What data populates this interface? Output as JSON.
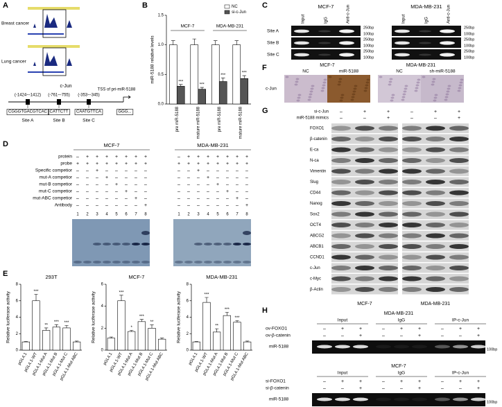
{
  "panel_labels": [
    "A",
    "B",
    "C",
    "D",
    "E",
    "F",
    "G",
    "H"
  ],
  "panels": {
    "A": {
      "tracks": [
        "Breast cancer",
        "Lung cancer"
      ],
      "gene": "c-Jun",
      "sites": [
        {
          "position": "(-1424~-1412)",
          "sequence": "CGGGTGACGTCAC",
          "name": "Site A"
        },
        {
          "position": "(-761~-755)",
          "sequence": "CATTCTT",
          "name": "Site B"
        },
        {
          "position": "(-353~-345)",
          "sequence": "CAATGTTCA",
          "name": "Site C"
        }
      ],
      "tss": "TSS of pri-miR-5188",
      "tss_sequence": "GGG..."
    },
    "C": {
      "rows": [
        "Site A",
        "Site B",
        "Site C"
      ],
      "gels": [
        {
          "cell": "MCF-7",
          "columns": [
            "Input",
            "IgG",
            "Anti-c-Jun"
          ],
          "markers": [
            "250bp",
            "100bp",
            "250bp",
            "100bp",
            "250bp",
            "100bp"
          ]
        },
        {
          "cell": "MDA-MB-231",
          "columns": [
            "Input",
            "IgG",
            "Anti-c-Jun"
          ],
          "markers": [
            "250bp",
            "100bp",
            "250bp",
            "100bp",
            "250bp",
            "100bp"
          ]
        }
      ]
    },
    "D": {
      "row_labels": [
        "protein",
        "probe",
        "Specific competior",
        "mut-A competior",
        "mut-B competior",
        "mut-C competior",
        "mut-ABC competior",
        "Antibody"
      ],
      "blots": [
        {
          "cell": "MCF-7",
          "lanes": [
            1,
            2,
            3,
            4,
            5,
            6,
            7,
            8
          ],
          "signs": [
            [
              "–",
              "+",
              "+",
              "+",
              "+",
              "+",
              "+",
              "+"
            ],
            [
              "+",
              "+",
              "+",
              "+",
              "+",
              "+",
              "+",
              "+"
            ],
            [
              "–",
              "–",
              "+",
              "–",
              "–",
              "–",
              "–",
              "–"
            ],
            [
              "–",
              "–",
              "–",
              "+",
              "–",
              "–",
              "–",
              "–"
            ],
            [
              "–",
              "–",
              "–",
              "–",
              "+",
              "–",
              "–",
              "–"
            ],
            [
              "–",
              "–",
              "–",
              "–",
              "–",
              "+",
              "–",
              "–"
            ],
            [
              "–",
              "–",
              "–",
              "–",
              "–",
              "–",
              "+",
              "–"
            ],
            [
              "–",
              "–",
              "–",
              "–",
              "–",
              "–",
              "–",
              "+"
            ]
          ]
        },
        {
          "cell": "MDA-MB-231",
          "lanes": [
            1,
            2,
            3,
            4,
            5,
            6,
            7,
            8
          ],
          "signs": [
            [
              "–",
              "+",
              "+",
              "+",
              "+",
              "+",
              "+",
              "+"
            ],
            [
              "+",
              "+",
              "+",
              "+",
              "+",
              "+",
              "+",
              "+"
            ],
            [
              "–",
              "–",
              "+",
              "–",
              "–",
              "–",
              "–",
              "–"
            ],
            [
              "–",
              "–",
              "–",
              "+",
              "–",
              "–",
              "–",
              "–"
            ],
            [
              "–",
              "–",
              "–",
              "–",
              "+",
              "–",
              "–",
              "–"
            ],
            [
              "–",
              "–",
              "–",
              "–",
              "–",
              "+",
              "–",
              "–"
            ],
            [
              "–",
              "–",
              "–",
              "–",
              "–",
              "–",
              "+",
              "–"
            ],
            [
              "–",
              "–",
              "–",
              "–",
              "–",
              "–",
              "–",
              "+"
            ]
          ]
        }
      ]
    },
    "F": {
      "stain": "c-Jun",
      "cells": [
        {
          "cell": "MCF-7",
          "conditions": [
            "NC",
            "miR-5188"
          ]
        },
        {
          "cell": "MDA-MB-231",
          "conditions": [
            "NC",
            "sh-miR-5188"
          ]
        }
      ]
    },
    "G": {
      "treatments": [
        "si-c-Jun",
        "miR-5188 mimics"
      ],
      "proteins": [
        "FOXO1",
        "β-catenin",
        "E-ca",
        "N-ca",
        "Vimentin",
        "Slug",
        "CD44",
        "Nanog",
        "Sox2",
        "OCT4",
        "ABCG2",
        "ABCB1",
        "CCND1",
        "c-Jun",
        "c-Myc",
        "β-Actin"
      ],
      "blots": [
        {
          "cell": "MCF-7",
          "signs": [
            [
              "–",
              "+",
              "+"
            ],
            [
              "–",
              "–",
              "+"
            ]
          ]
        },
        {
          "cell": "MDA-MB-231",
          "signs": [
            [
              "–",
              "+",
              "+"
            ],
            [
              "–",
              "–",
              "+"
            ]
          ]
        }
      ]
    },
    "H": {
      "sections": [
        {
          "cell": "MDA-MB-231",
          "groups": [
            "Input",
            "IgG",
            "IP-c-Jun"
          ],
          "treatments": [
            {
              "name": "ov-FOXO1",
              "signs": [
                "–",
                "+",
                "+",
                "–",
                "+",
                "+",
                "–",
                "+",
                "+"
              ]
            },
            {
              "name": "ov-β-catenin",
              "signs": [
                "–",
                "–",
                "+",
                "–",
                "–",
                "+",
                "–",
                "–",
                "+"
              ]
            }
          ],
          "band": "miR-5188",
          "marker": "100bp"
        },
        {
          "cell": "MCF-7",
          "groups": [
            "Input",
            "IgG",
            "IP-c-Jun"
          ],
          "treatments": [
            {
              "name": "si-FOXO1",
              "signs": [
                "–",
                "+",
                "+",
                "–",
                "+",
                "+",
                "–",
                "+",
                "+"
              ]
            },
            {
              "name": "si-β-catenin",
              "signs": [
                "–",
                "–",
                "+",
                "–",
                "–",
                "+",
                "–",
                "–",
                "+"
              ]
            }
          ],
          "band": "miR-5188",
          "marker": "100bp"
        }
      ]
    }
  },
  "chart_data": [
    {
      "type": "bar",
      "ylabel": "miR-5188 relative levels",
      "groups": [
        "MCF-7",
        "MDA-MB-231"
      ],
      "categories": [
        "pre miR-5188",
        "mature miR-5188",
        "pre miR-5188",
        "mature miR-5188"
      ],
      "series": [
        {
          "name": "NC",
          "color": "#ffffff",
          "values": [
            1.0,
            1.0,
            1.0,
            1.0
          ],
          "errors": [
            0.07,
            0.1,
            0.07,
            0.07
          ]
        },
        {
          "name": "si-c-Jun",
          "color": "#555555",
          "values": [
            0.3,
            0.25,
            0.38,
            0.43
          ],
          "errors": [
            0.03,
            0.03,
            0.06,
            0.05
          ],
          "annotations": [
            "***",
            "***",
            "***",
            "***"
          ]
        }
      ],
      "ylim": [
        0,
        1.5
      ],
      "yticks": [
        {
          "value": 0,
          "label": "0.0"
        },
        {
          "value": 0.5,
          "label": "0.5"
        },
        {
          "value": 1,
          "label": "1.0"
        },
        {
          "value": 1.5,
          "label": "1.5"
        }
      ],
      "legend": "upper right"
    },
    {
      "type": "bar",
      "title": "293T",
      "ylabel": "Relative luciferase activity",
      "categories": [
        "pGL4.1",
        "pGL4.1-WT",
        "pGL4.1-Mut A",
        "pGL4.1-Mut B",
        "pGL4.1-Mut C",
        "pGL4.1-Mut ABC"
      ],
      "values": [
        1.0,
        6.0,
        2.4,
        2.8,
        2.7,
        1.0
      ],
      "errors": [
        0.05,
        0.8,
        0.3,
        0.3,
        0.3,
        0.1
      ],
      "annotations": [
        null,
        "***",
        "**",
        "***",
        "***",
        null
      ],
      "color": "#ffffff",
      "ylim": [
        0,
        8
      ],
      "yticks": [
        0,
        2,
        4,
        6,
        8
      ]
    },
    {
      "type": "bar",
      "title": "MCF-7",
      "ylabel": "Relative luciferase activity",
      "categories": [
        "pGL4.1",
        "pGL4.1-WT",
        "pGL4.1-Mut A",
        "pGL4.1-Mut B",
        "pGL4.1-Mut C",
        "pGL4.1-Mut ABC"
      ],
      "values": [
        1.1,
        4.5,
        1.7,
        2.6,
        2.0,
        1.0
      ],
      "errors": [
        0.1,
        0.5,
        0.1,
        0.2,
        0.3,
        0.1
      ],
      "annotations": [
        null,
        "***",
        "*",
        "***",
        "**",
        null
      ],
      "color": "#ffffff",
      "ylim": [
        0,
        6
      ],
      "yticks": [
        0,
        2,
        4,
        6
      ]
    },
    {
      "type": "bar",
      "title": "MDA-MB-231",
      "ylabel": "Relative luciferase activity",
      "categories": [
        "pGL4.1",
        "pGL4.1-WT",
        "pGL4.1-Mut A",
        "pGL4.1-Mut B",
        "pGL4.1-Mut C",
        "pGL4.1-Mut ABC"
      ],
      "values": [
        1.0,
        5.8,
        2.2,
        4.2,
        3.4,
        1.0
      ],
      "errors": [
        0.05,
        0.6,
        0.4,
        0.4,
        0.2,
        0.1
      ],
      "annotations": [
        null,
        "***",
        "**",
        "***",
        "***",
        null
      ],
      "color": "#ffffff",
      "ylim": [
        0,
        8
      ],
      "yticks": [
        0,
        2,
        4,
        6,
        8
      ]
    }
  ]
}
